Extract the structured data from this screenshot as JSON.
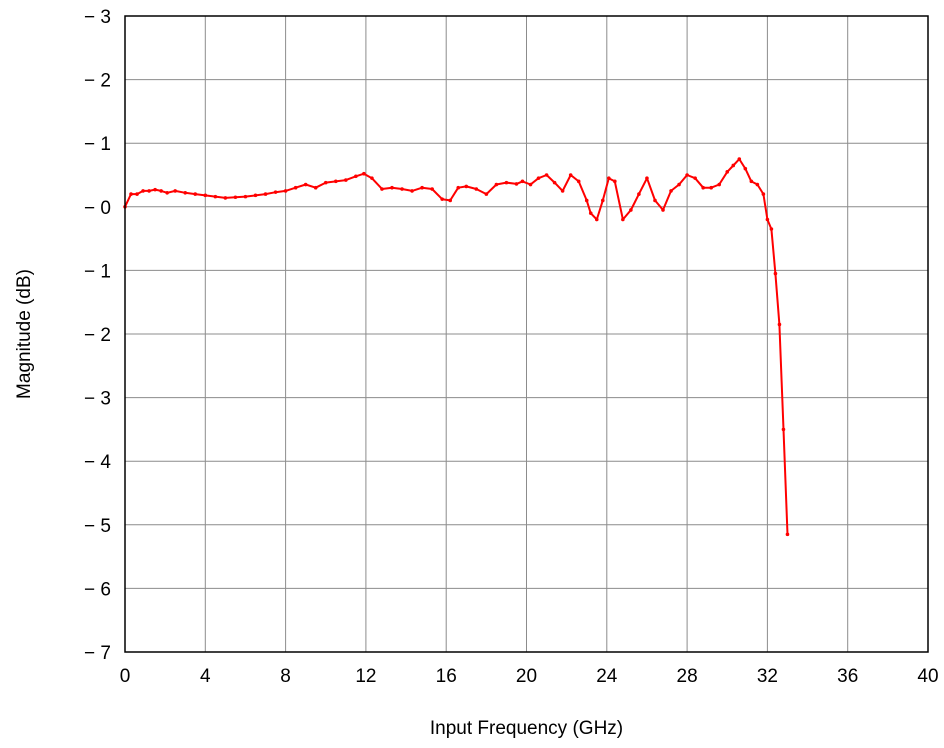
{
  "chart_data": {
    "type": "line",
    "title": "",
    "xlabel": "Input Frequency (GHz)",
    "ylabel": "Magnitude (dB)",
    "xlim": [
      0,
      40
    ],
    "ylim": [
      -7,
      3
    ],
    "grid": true,
    "legend": "none",
    "x_ticks": [
      0,
      4,
      8,
      12,
      16,
      20,
      24,
      28,
      32,
      36,
      40
    ],
    "x_tick_labels": [
      "0",
      "4",
      "8",
      "12",
      "16",
      "20",
      "24",
      "28",
      "32",
      "36",
      "40"
    ],
    "y_ticks": [
      3,
      2,
      1,
      0,
      -1,
      -2,
      -3,
      -4,
      -5,
      -6,
      -7
    ],
    "y_tick_labels": [
      "− 3",
      "− 2",
      "− 1",
      "− 0",
      "− 1",
      "− 2",
      "− 3",
      "− 4",
      "− 5",
      "− 6",
      "− 7"
    ],
    "series": [
      {
        "color": "#ff0000",
        "x": [
          0.0,
          0.3,
          0.6,
          0.9,
          1.2,
          1.5,
          1.8,
          2.1,
          2.5,
          3.0,
          3.5,
          4.0,
          4.5,
          5.0,
          5.5,
          6.0,
          6.5,
          7.0,
          7.5,
          8.0,
          8.5,
          9.0,
          9.5,
          10.0,
          10.5,
          11.0,
          11.5,
          11.9,
          12.3,
          12.8,
          13.3,
          13.8,
          14.3,
          14.8,
          15.3,
          15.8,
          16.2,
          16.6,
          17.0,
          17.5,
          18.0,
          18.5,
          19.0,
          19.5,
          19.8,
          20.2,
          20.6,
          21.0,
          21.4,
          21.8,
          22.2,
          22.6,
          23.0,
          23.2,
          23.5,
          23.8,
          24.1,
          24.4,
          24.8,
          25.2,
          25.6,
          26.0,
          26.4,
          26.8,
          27.2,
          27.6,
          28.0,
          28.4,
          28.8,
          29.2,
          29.6,
          30.0,
          30.3,
          30.6,
          30.9,
          31.2,
          31.5,
          31.8,
          32.0,
          32.2,
          32.4,
          32.6,
          32.8,
          33.0
        ],
        "y": [
          0.0,
          0.2,
          0.2,
          0.25,
          0.25,
          0.27,
          0.25,
          0.22,
          0.25,
          0.22,
          0.2,
          0.18,
          0.16,
          0.14,
          0.15,
          0.16,
          0.18,
          0.2,
          0.23,
          0.25,
          0.3,
          0.35,
          0.3,
          0.38,
          0.4,
          0.42,
          0.48,
          0.52,
          0.45,
          0.28,
          0.3,
          0.28,
          0.25,
          0.3,
          0.28,
          0.12,
          0.1,
          0.3,
          0.32,
          0.28,
          0.2,
          0.35,
          0.38,
          0.36,
          0.4,
          0.35,
          0.45,
          0.5,
          0.38,
          0.25,
          0.5,
          0.4,
          0.1,
          -0.1,
          -0.2,
          0.1,
          0.45,
          0.4,
          -0.2,
          -0.05,
          0.2,
          0.45,
          0.1,
          -0.05,
          0.25,
          0.35,
          0.5,
          0.45,
          0.3,
          0.3,
          0.35,
          0.55,
          0.65,
          0.75,
          0.6,
          0.4,
          0.35,
          0.2,
          -0.2,
          -0.35,
          -1.05,
          -1.85,
          -3.5,
          -5.15
        ]
      }
    ]
  }
}
